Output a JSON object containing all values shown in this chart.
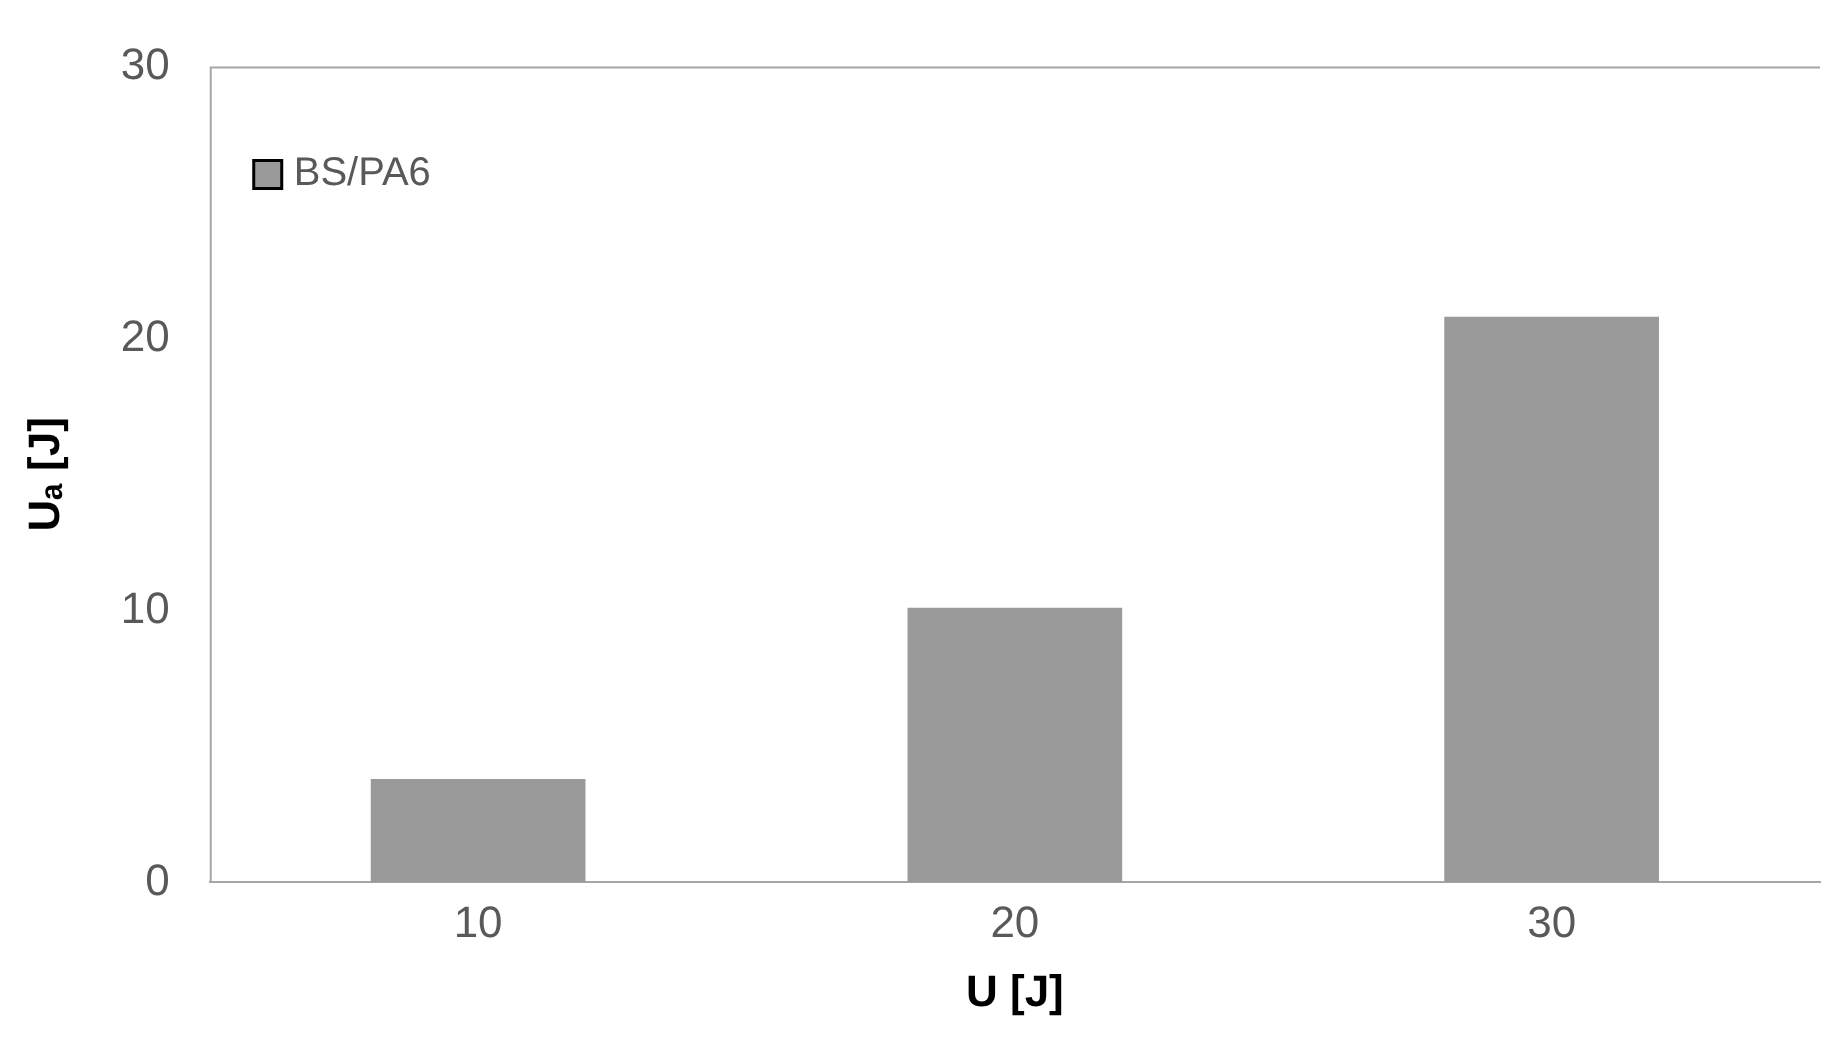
{
  "chart_data": {
    "type": "bar",
    "xlabel": "U [J]",
    "ylabel": "Uₐ [J]",
    "categories": [
      "10",
      "20",
      "30"
    ],
    "series": [
      {
        "name": "BS/PA6",
        "color": "#9a9a9a",
        "values": [
          3.8,
          10.1,
          20.8
        ]
      }
    ],
    "ylim": [
      0,
      30
    ],
    "yticks": [
      0,
      10,
      20,
      30
    ],
    "grid": false,
    "legend": "top left"
  }
}
